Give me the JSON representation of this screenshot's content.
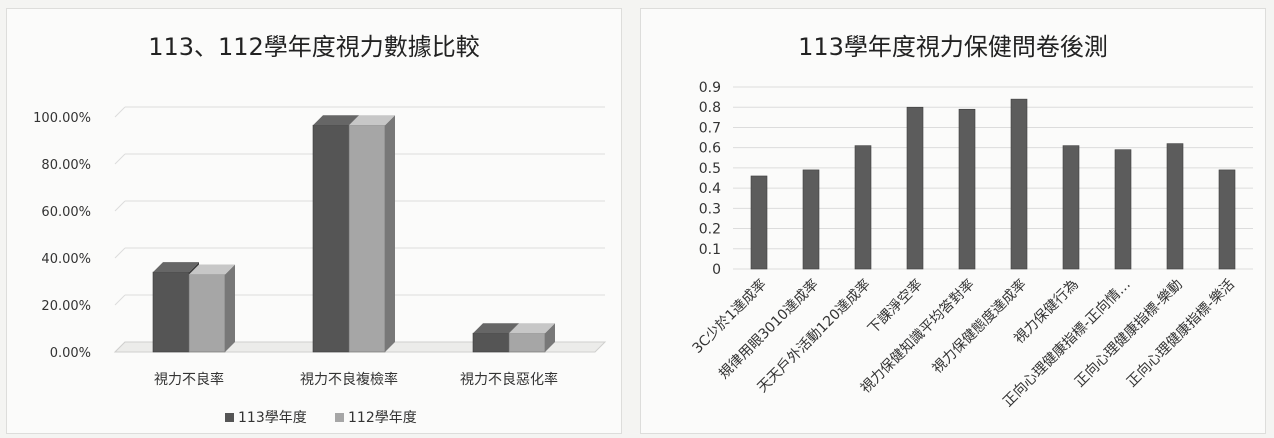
{
  "colors": {
    "series_113": "#555555",
    "series_112": "#a6a6a6",
    "bar_right": "#5c5c5c",
    "grid": "#dcdcdc",
    "text": "#333333"
  },
  "chart_data": [
    {
      "type": "bar",
      "title": "113、112學年度視力數據比較",
      "categories": [
        "視力不良率",
        "視力不良複檢率",
        "視力不良惡化率"
      ],
      "series": [
        {
          "name": "113學年度",
          "values": [
            0.34,
            0.965,
            0.08
          ]
        },
        {
          "name": "112學年度",
          "values": [
            0.33,
            0.965,
            0.08
          ]
        }
      ],
      "yticks": [
        "0.00%",
        "20.00%",
        "40.00%",
        "60.00%",
        "80.00%",
        "100.00%"
      ],
      "ylim": [
        0,
        1.0
      ],
      "legend": "bottom",
      "grid": true
    },
    {
      "type": "bar",
      "title": "113學年度視力保健問卷後測",
      "categories": [
        "3C少於1達成率",
        "規律用眼3010達成率",
        "天天戶外活動120達成率",
        "下課淨空率",
        "視力保健知識平均答對率",
        "視力保健態度達成率",
        "視力保健行為",
        "正向心理健康指標-正向情…",
        "正向心理健康指標-樂動",
        "正向心理健康指標-樂活"
      ],
      "values": [
        0.46,
        0.49,
        0.61,
        0.8,
        0.79,
        0.84,
        0.61,
        0.59,
        0.62,
        0.49
      ],
      "yticks": [
        "0",
        "0.1",
        "0.2",
        "0.3",
        "0.4",
        "0.5",
        "0.6",
        "0.7",
        "0.8",
        "0.9"
      ],
      "ylim": [
        0,
        0.9
      ],
      "legend": "none",
      "grid": true
    }
  ]
}
